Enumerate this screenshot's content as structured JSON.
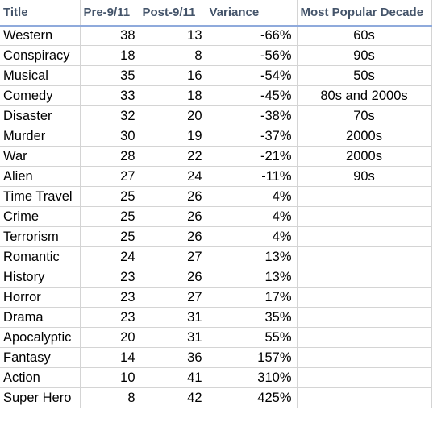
{
  "headers": {
    "title": "Title",
    "pre": "Pre-9/11",
    "post": "Post-9/11",
    "variance": "Variance",
    "decade": "Most Popular Decade"
  },
  "rows": [
    {
      "title": "Western",
      "pre": "38",
      "post": "13",
      "variance": "-66%",
      "decade": "60s"
    },
    {
      "title": "Conspiracy",
      "pre": "18",
      "post": "8",
      "variance": "-56%",
      "decade": "90s"
    },
    {
      "title": "Musical",
      "pre": "35",
      "post": "16",
      "variance": "-54%",
      "decade": "50s"
    },
    {
      "title": "Comedy",
      "pre": "33",
      "post": "18",
      "variance": "-45%",
      "decade": "80s and 2000s"
    },
    {
      "title": "Disaster",
      "pre": "32",
      "post": "20",
      "variance": "-38%",
      "decade": "70s"
    },
    {
      "title": "Murder",
      "pre": "30",
      "post": "19",
      "variance": "-37%",
      "decade": "2000s"
    },
    {
      "title": "War",
      "pre": "28",
      "post": "22",
      "variance": "-21%",
      "decade": "2000s"
    },
    {
      "title": "Alien",
      "pre": "27",
      "post": "24",
      "variance": "-11%",
      "decade": "90s"
    },
    {
      "title": "Time Travel",
      "pre": "25",
      "post": "26",
      "variance": "4%",
      "decade": ""
    },
    {
      "title": "Crime",
      "pre": "25",
      "post": "26",
      "variance": "4%",
      "decade": ""
    },
    {
      "title": "Terrorism",
      "pre": "25",
      "post": "26",
      "variance": "4%",
      "decade": ""
    },
    {
      "title": "Romantic",
      "pre": "24",
      "post": "27",
      "variance": "13%",
      "decade": ""
    },
    {
      "title": "History",
      "pre": "23",
      "post": "26",
      "variance": "13%",
      "decade": ""
    },
    {
      "title": "Horror",
      "pre": "23",
      "post": "27",
      "variance": "17%",
      "decade": ""
    },
    {
      "title": "Drama",
      "pre": "23",
      "post": "31",
      "variance": "35%",
      "decade": ""
    },
    {
      "title": "Apocalyptic",
      "pre": "20",
      "post": "31",
      "variance": "55%",
      "decade": ""
    },
    {
      "title": "Fantasy",
      "pre": "14",
      "post": "36",
      "variance": "157%",
      "decade": ""
    },
    {
      "title": "Action",
      "pre": "10",
      "post": "41",
      "variance": "310%",
      "decade": ""
    },
    {
      "title": "Super Hero",
      "pre": "8",
      "post": "42",
      "variance": "425%",
      "decade": ""
    }
  ]
}
